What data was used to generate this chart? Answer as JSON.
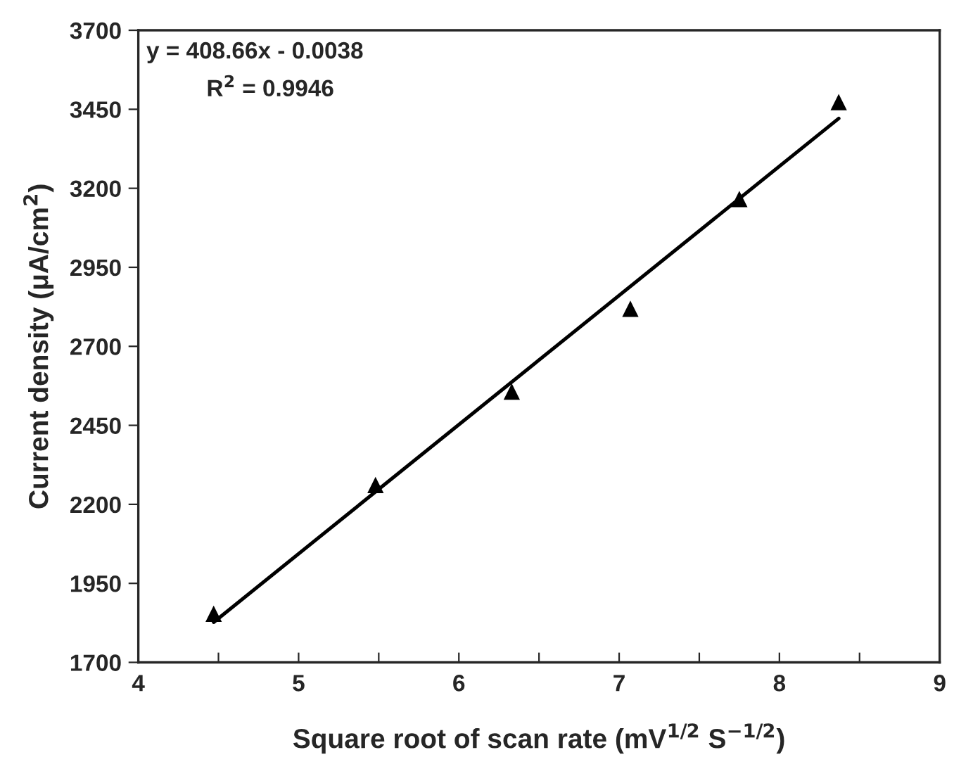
{
  "chart_data": {
    "type": "scatter",
    "xlabel": "Square root of scan rate (mV$^{1/2}$ S$^{−1/2}$)",
    "ylabel": "Current density (μA/cm$^{2}$)",
    "annotations": [
      "y = 408.66x - 0.0038",
      "R$^{2}$ = 0.9946"
    ],
    "x": [
      4.47,
      5.48,
      6.33,
      7.07,
      7.75,
      8.37
    ],
    "series": [
      {
        "color": "#000000",
        "marker": "triangle",
        "values": [
          1854,
          2261,
          2557,
          2819,
          3166,
          3473
        ]
      },
      {
        "type": "line",
        "color": "#000000",
        "marker": "none",
        "line_style": "solid",
        "x": [
          4.47,
          8.37
        ],
        "values": [
          1827,
          3421
        ]
      }
    ],
    "xlim": [
      4,
      9
    ],
    "ylim": [
      1700,
      3700
    ],
    "xticks": [
      4,
      {
        "value": 4.5,
        "label": null
      },
      5,
      {
        "value": 5.5,
        "label": null
      },
      6,
      {
        "value": 6.5,
        "label": null
      },
      7,
      {
        "value": 7.5,
        "label": null
      },
      8,
      {
        "value": 8.5,
        "label": null
      },
      9
    ],
    "yticks": [
      1700,
      1950,
      2200,
      2450,
      2700,
      2950,
      3200,
      3450,
      3700
    ],
    "grid": false,
    "legend": false
  }
}
